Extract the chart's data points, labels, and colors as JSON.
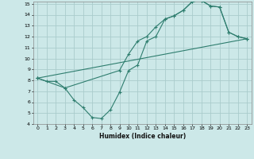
{
  "xlabel": "Humidex (Indice chaleur)",
  "bg_color": "#cce8e8",
  "grid_color": "#aacccc",
  "line_color": "#2e7d6e",
  "xlim": [
    -0.5,
    23.5
  ],
  "ylim": [
    4,
    15.2
  ],
  "xticks": [
    0,
    1,
    2,
    3,
    4,
    5,
    6,
    7,
    8,
    9,
    10,
    11,
    12,
    13,
    14,
    15,
    16,
    17,
    18,
    19,
    20,
    21,
    22,
    23
  ],
  "yticks": [
    4,
    5,
    6,
    7,
    8,
    9,
    10,
    11,
    12,
    13,
    14,
    15
  ],
  "line1_x": [
    0,
    1,
    2,
    3,
    4,
    5,
    6,
    7,
    8,
    9,
    10,
    11,
    12,
    13,
    14,
    15,
    16,
    17,
    18,
    19,
    20,
    21,
    22,
    23
  ],
  "line1_y": [
    8.2,
    7.9,
    7.9,
    7.3,
    6.2,
    5.5,
    4.6,
    4.5,
    5.3,
    6.9,
    8.9,
    9.4,
    11.6,
    12.0,
    13.6,
    13.9,
    14.4,
    15.2,
    15.3,
    14.8,
    14.7,
    12.4,
    12.0,
    11.8
  ],
  "line2_x": [
    0,
    3,
    9,
    10,
    11,
    12,
    13,
    14,
    15,
    16,
    17,
    18,
    19,
    20,
    21,
    22,
    23
  ],
  "line2_y": [
    8.2,
    7.3,
    8.9,
    10.4,
    11.6,
    12.0,
    12.9,
    13.6,
    13.9,
    14.4,
    15.2,
    15.3,
    14.8,
    14.7,
    12.4,
    12.0,
    11.8
  ],
  "line3_x": [
    0,
    23
  ],
  "line3_y": [
    8.2,
    11.8
  ]
}
